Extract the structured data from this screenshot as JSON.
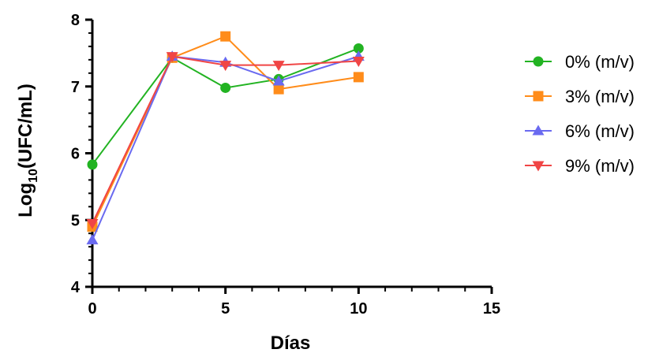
{
  "chart_data": {
    "type": "line",
    "title": "",
    "xlabel": "Días",
    "ylabel_main": "Log",
    "ylabel_sub": "10",
    "ylabel_rest": "(UFC/mL)",
    "xlim": [
      0,
      15
    ],
    "ylim": [
      4,
      8
    ],
    "x_ticks": [
      0,
      5,
      10,
      15
    ],
    "y_ticks": [
      4,
      5,
      6,
      7,
      8
    ],
    "grid": false,
    "legend_position": "right",
    "series": [
      {
        "name": "0% (m/v)",
        "color": "#22b322",
        "marker": "circle",
        "x": [
          0,
          3,
          5,
          7,
          10
        ],
        "y": [
          5.83,
          7.43,
          6.98,
          7.11,
          7.57
        ]
      },
      {
        "name": "3% (m/v)",
        "color": "#ff8c1a",
        "marker": "square",
        "x": [
          0,
          3,
          5,
          7,
          10
        ],
        "y": [
          4.9,
          7.43,
          7.75,
          6.96,
          7.14
        ]
      },
      {
        "name": "6% (m/v)",
        "color": "#6a6af0",
        "marker": "triangle-up",
        "x": [
          0,
          3,
          5,
          7,
          10
        ],
        "y": [
          4.7,
          7.45,
          7.36,
          7.08,
          7.45
        ]
      },
      {
        "name": "9% (m/v)",
        "color": "#f04545",
        "marker": "triangle-down",
        "x": [
          0,
          3,
          5,
          7,
          10
        ],
        "y": [
          4.95,
          7.45,
          7.32,
          7.32,
          7.38
        ]
      }
    ]
  }
}
